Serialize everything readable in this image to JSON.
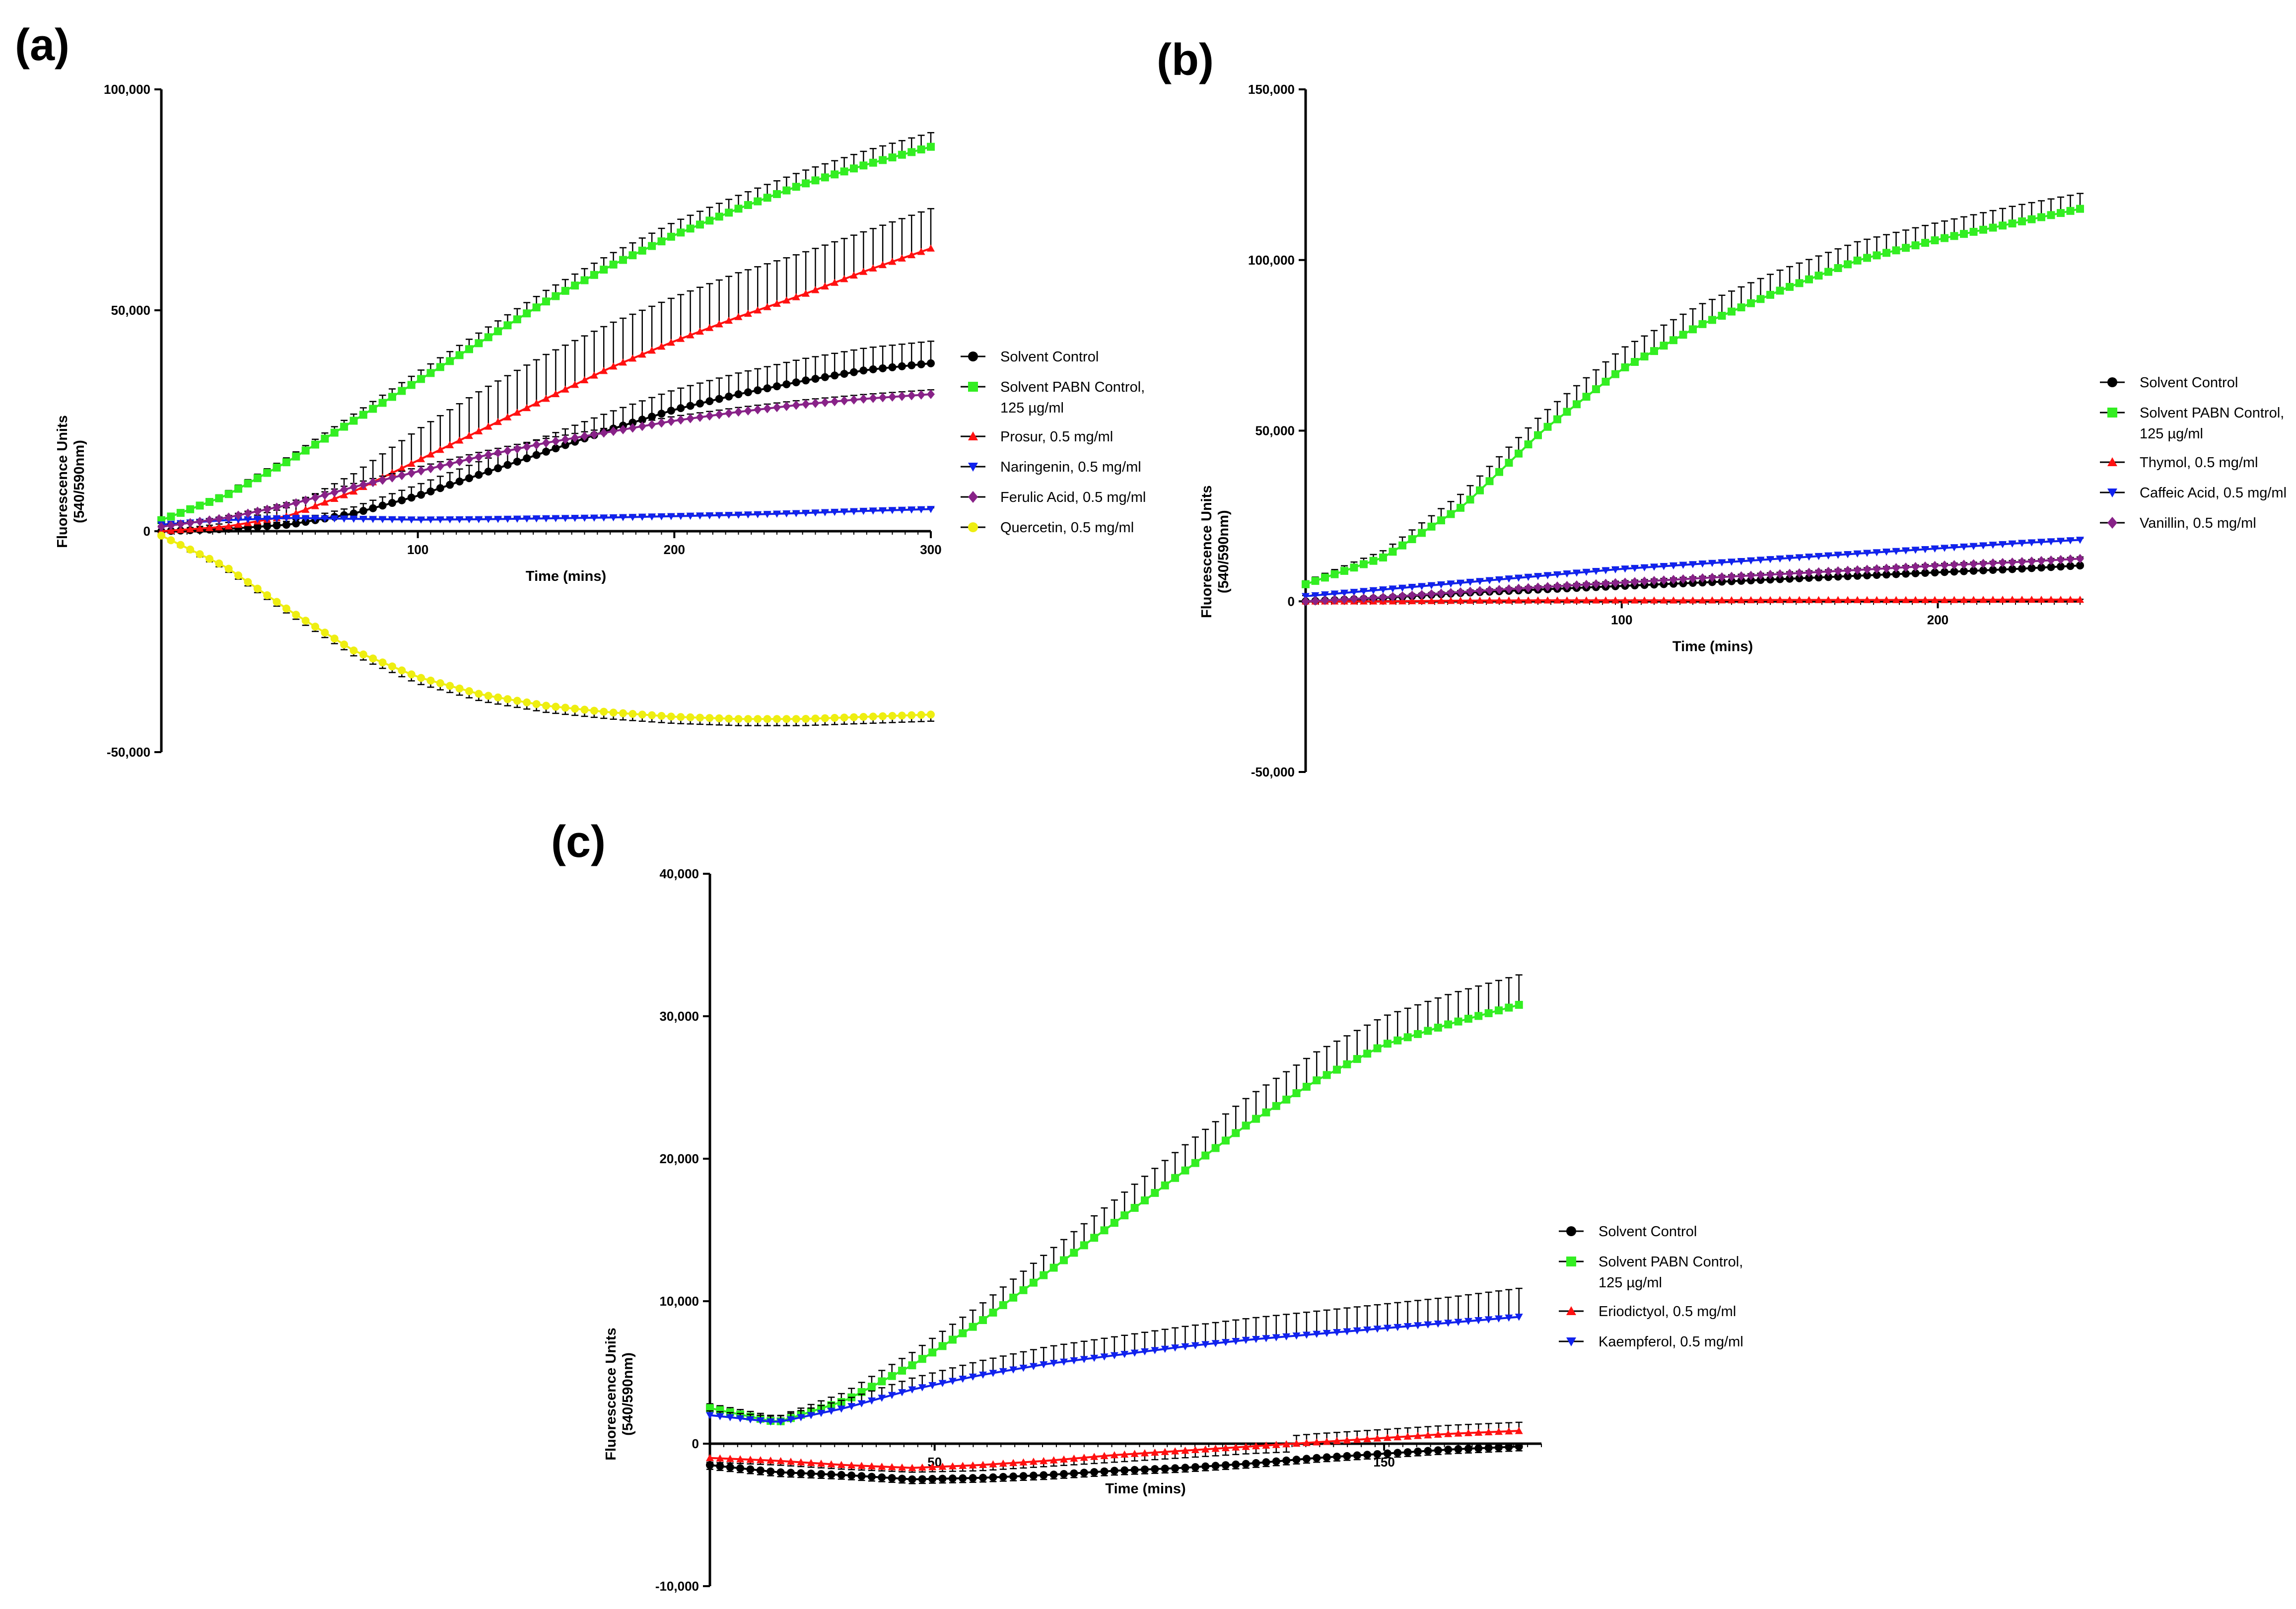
{
  "chart_data": [
    {
      "panel_label": "(a)",
      "type": "line",
      "xlabel": "Time (mins)",
      "ylabel": [
        "Fluorescence Units",
        "(540/590nm)"
      ],
      "xlim": [
        0,
        300
      ],
      "ylim": [
        -50000,
        100000
      ],
      "xticks": [
        100,
        200,
        300
      ],
      "xticklabels": [
        "100",
        "200",
        "300"
      ],
      "yticks": [
        -50000,
        0,
        50000,
        100000
      ],
      "yticklabels": [
        "-50,000",
        "0",
        "50,000",
        "100,000"
      ],
      "legend_position": "right",
      "series": [
        {
          "name": [
            "Solvent Control"
          ],
          "color": "#000000",
          "marker": "circle",
          "x": [
            0,
            25,
            50,
            75,
            100,
            125,
            150,
            175,
            200,
            225,
            250,
            275,
            300
          ],
          "y": [
            0,
            500,
            1500,
            4000,
            8000,
            13000,
            18000,
            23000,
            27500,
            31000,
            34000,
            36500,
            38000
          ],
          "err": [
            0,
            300,
            800,
            1500,
            2500,
            3000,
            3500,
            4000,
            4500,
            4800,
            5000,
            5000,
            5000
          ]
        },
        {
          "name": [
            "Solvent PABN Control,",
            "125 µg/ml"
          ],
          "color": "#33ee22",
          "marker": "square",
          "x": [
            0,
            25,
            50,
            75,
            100,
            125,
            150,
            175,
            200,
            225,
            250,
            275,
            300
          ],
          "y": [
            2500,
            8000,
            16000,
            25000,
            34000,
            43000,
            52000,
            60000,
            67000,
            73000,
            78500,
            83000,
            87000
          ],
          "err": [
            500,
            800,
            1000,
            1500,
            2000,
            2300,
            2500,
            2700,
            3000,
            3000,
            3000,
            3200,
            3200
          ]
        },
        {
          "name": [
            "Prosur, 0.5 mg/ml"
          ],
          "color": "#ff1111",
          "marker": "triangle-up",
          "x": [
            0,
            25,
            50,
            75,
            100,
            125,
            150,
            175,
            200,
            225,
            250,
            275,
            300
          ],
          "y": [
            0,
            1000,
            3500,
            9000,
            16000,
            23000,
            30000,
            37000,
            43000,
            48500,
            53500,
            59000,
            64000
          ],
          "err": [
            0,
            800,
            2000,
            4000,
            7000,
            9000,
            10000,
            10000,
            10000,
            10000,
            9500,
            9000,
            9000
          ]
        },
        {
          "name": [
            "Naringenin, 0.5 mg/ml"
          ],
          "color": "#1122ee",
          "marker": "triangle-down",
          "x": [
            0,
            25,
            50,
            75,
            100,
            125,
            150,
            175,
            200,
            225,
            250,
            275,
            300
          ],
          "y": [
            1500,
            2500,
            3000,
            2800,
            2600,
            2700,
            2900,
            3100,
            3400,
            3700,
            4100,
            4600,
            5000
          ],
          "err": [
            300,
            300,
            300,
            300,
            300,
            300,
            300,
            300,
            300,
            300,
            300,
            300,
            300
          ]
        },
        {
          "name": [
            "Ferulic Acid, 0.5 mg/ml"
          ],
          "color": "#882288",
          "marker": "diamond",
          "x": [
            0,
            25,
            50,
            75,
            100,
            125,
            150,
            175,
            200,
            225,
            250,
            275,
            300
          ],
          "y": [
            1000,
            3000,
            6000,
            10000,
            13500,
            17000,
            20000,
            22500,
            25000,
            27000,
            28700,
            30000,
            31000
          ],
          "err": [
            200,
            400,
            600,
            800,
            1000,
            1000,
            1000,
            1000,
            1000,
            1000,
            1000,
            1000,
            1000
          ]
        },
        {
          "name": [
            "Quercetin, 0.5 mg/ml"
          ],
          "color": "#eeee11",
          "marker": "circle",
          "x": [
            0,
            25,
            50,
            75,
            100,
            125,
            150,
            175,
            200,
            225,
            250,
            275,
            300
          ],
          "y": [
            -1000,
            -8000,
            -18000,
            -27000,
            -33000,
            -37000,
            -39500,
            -41000,
            -42000,
            -42500,
            -42500,
            -42000,
            -41500
          ],
          "err": [
            300,
            800,
            1000,
            1200,
            1500,
            1500,
            1500,
            1500,
            1500,
            1500,
            1500,
            1500,
            1500
          ]
        }
      ]
    },
    {
      "panel_label": "(b)",
      "type": "line",
      "xlabel": "Time (mins)",
      "ylabel": [
        "Fluorescence Units",
        "(540/590nm)"
      ],
      "xlim": [
        0,
        245
      ],
      "ylim": [
        -50000,
        150000
      ],
      "xticks": [
        100,
        200
      ],
      "xticklabels": [
        "100",
        "200"
      ],
      "yticks": [
        -50000,
        0,
        50000,
        100000,
        150000
      ],
      "yticklabels": [
        "-50,000",
        "0",
        "50,000",
        "100,000",
        "150,000"
      ],
      "legend_position": "right",
      "series": [
        {
          "name": [
            "Solvent Control"
          ],
          "color": "#000000",
          "marker": "circle",
          "x": [
            0,
            25,
            50,
            75,
            100,
            125,
            150,
            175,
            200,
            225,
            245
          ],
          "y": [
            0,
            1000,
            2500,
            3500,
            4500,
            5500,
            6500,
            7500,
            8500,
            9500,
            10500
          ],
          "err": [
            200,
            300,
            400,
            400,
            500,
            500,
            500,
            500,
            500,
            500,
            500
          ]
        },
        {
          "name": [
            "Solvent PABN Control,",
            "125 µg/ml"
          ],
          "color": "#33ee22",
          "marker": "square",
          "x": [
            0,
            25,
            50,
            75,
            100,
            125,
            150,
            175,
            200,
            225,
            245
          ],
          "y": [
            5000,
            13000,
            28000,
            50000,
            68000,
            81000,
            91000,
            100000,
            106000,
            111000,
            115000
          ],
          "err": [
            1000,
            2000,
            4000,
            5000,
            6000,
            6000,
            6000,
            5500,
            5000,
            5000,
            4500
          ]
        },
        {
          "name": [
            "Thymol, 0.5 mg/ml"
          ],
          "color": "#ff1111",
          "marker": "triangle-up",
          "x": [
            0,
            25,
            50,
            75,
            100,
            125,
            150,
            175,
            200,
            225,
            245
          ],
          "y": [
            0,
            0,
            200,
            300,
            300,
            300,
            400,
            400,
            400,
            500,
            500
          ],
          "err": [
            100,
            100,
            100,
            100,
            100,
            100,
            100,
            100,
            100,
            100,
            100
          ]
        },
        {
          "name": [
            "Caffeic Acid, 0.5 mg/ml"
          ],
          "color": "#1122ee",
          "marker": "triangle-down",
          "x": [
            0,
            25,
            50,
            75,
            100,
            125,
            150,
            175,
            200,
            225,
            245
          ],
          "y": [
            1500,
            3500,
            5500,
            7500,
            9500,
            11000,
            12500,
            14000,
            15500,
            17000,
            18000
          ],
          "err": [
            200,
            300,
            400,
            500,
            500,
            500,
            500,
            500,
            500,
            500,
            500
          ]
        },
        {
          "name": [
            "Vanillin, 0.5 mg/ml"
          ],
          "color": "#882288",
          "marker": "diamond",
          "x": [
            0,
            25,
            50,
            75,
            100,
            125,
            150,
            175,
            200,
            225,
            245
          ],
          "y": [
            0,
            1200,
            2800,
            4200,
            5500,
            6800,
            8000,
            9200,
            10500,
            11500,
            12500
          ],
          "err": [
            200,
            300,
            400,
            400,
            500,
            500,
            500,
            500,
            500,
            500,
            500
          ]
        }
      ]
    },
    {
      "panel_label": "(c)",
      "type": "line",
      "xlabel": "Time (mins)",
      "ylabel": [
        "Fluorescence Units",
        "(540/590nm)"
      ],
      "xlim": [
        0,
        185
      ],
      "ylim": [
        -10000,
        40000
      ],
      "xticks": [
        50,
        150
      ],
      "xticklabels": [
        "50",
        "150"
      ],
      "yticks": [
        -10000,
        0,
        10000,
        20000,
        30000,
        40000
      ],
      "yticklabels": [
        "-10,000",
        "0",
        "10,000",
        "20,000",
        "30,000",
        "40,000"
      ],
      "legend_position": "right",
      "series": [
        {
          "name": [
            "Solvent Control"
          ],
          "color": "#000000",
          "marker": "circle",
          "x": [
            0,
            15,
            30,
            45,
            60,
            75,
            90,
            105,
            120,
            135,
            150,
            165,
            180
          ],
          "y": [
            -1500,
            -2000,
            -2200,
            -2500,
            -2400,
            -2200,
            -1900,
            -1700,
            -1400,
            -1000,
            -700,
            -400,
            -200
          ],
          "err": [
            300,
            300,
            300,
            300,
            300,
            300,
            300,
            300,
            300,
            300,
            300,
            300,
            300
          ]
        },
        {
          "name": [
            "Solvent PABN Control,",
            "125 µg/ml"
          ],
          "color": "#33ee22",
          "marker": "square",
          "x": [
            0,
            15,
            30,
            45,
            60,
            75,
            90,
            105,
            120,
            135,
            150,
            165,
            180
          ],
          "y": [
            2500,
            1500,
            3000,
            5500,
            8500,
            12000,
            15500,
            19000,
            22500,
            25500,
            28000,
            29500,
            30800
          ],
          "err": [
            300,
            400,
            600,
            900,
            1200,
            1400,
            1600,
            1800,
            1900,
            2000,
            2000,
            2100,
            2100
          ]
        },
        {
          "name": [
            "Eriodictyol, 0.5 mg/ml"
          ],
          "color": "#ff1111",
          "marker": "triangle-up",
          "x": [
            0,
            15,
            30,
            45,
            60,
            75,
            90,
            105,
            120,
            135,
            150,
            165,
            180
          ],
          "y": [
            -1000,
            -1200,
            -1500,
            -1700,
            -1500,
            -1200,
            -800,
            -500,
            -200,
            100,
            400,
            700,
            900
          ],
          "err": [
            300,
            300,
            300,
            300,
            400,
            400,
            500,
            500,
            500,
            600,
            600,
            600,
            600
          ]
        },
        {
          "name": [
            "Kaempferol, 0.5 mg/ml"
          ],
          "color": "#1122ee",
          "marker": "triangle-down",
          "x": [
            0,
            15,
            30,
            45,
            60,
            75,
            90,
            105,
            120,
            135,
            150,
            165,
            180
          ],
          "y": [
            2000,
            1500,
            2500,
            3800,
            4800,
            5600,
            6200,
            6800,
            7300,
            7700,
            8100,
            8500,
            8900
          ],
          "err": [
            300,
            400,
            600,
            800,
            1000,
            1200,
            1300,
            1400,
            1500,
            1600,
            1700,
            1800,
            2000
          ]
        }
      ]
    }
  ]
}
